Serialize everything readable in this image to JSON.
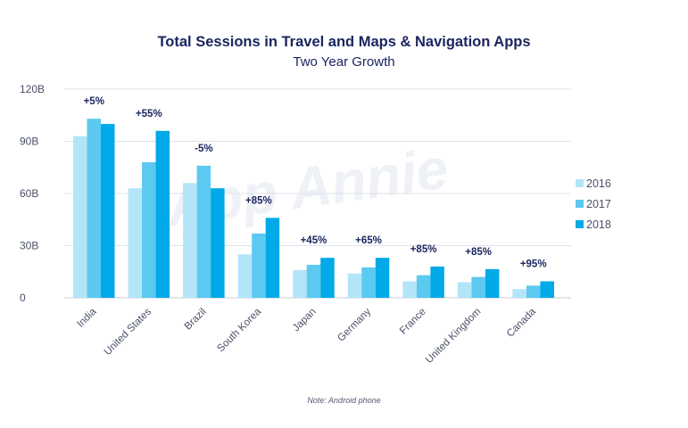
{
  "chart_data": {
    "type": "bar",
    "title": "Total Sessions in Travel and Maps & Navigation Apps",
    "subtitle": "Two Year Growth",
    "note": "Note: Android phone",
    "watermark": "App Annie",
    "xlabel": "",
    "ylabel": "",
    "ylim": [
      0,
      120
    ],
    "y_ticks": [
      "0",
      "30B",
      "60B",
      "90B",
      "120B"
    ],
    "y_tick_values": [
      0,
      30,
      60,
      90,
      120
    ],
    "grid": true,
    "legend_position": "right",
    "categories": [
      "India",
      "United States",
      "Brazil",
      "South Korea",
      "Japan",
      "Germany",
      "France",
      "United Kingdom",
      "Canada"
    ],
    "series": [
      {
        "name": "2016",
        "color": "#b3e5f8",
        "values": [
          93,
          63,
          66,
          25,
          16,
          14,
          9.5,
          9,
          5
        ]
      },
      {
        "name": "2017",
        "color": "#5cc9f0",
        "values": [
          103,
          78,
          76,
          37,
          19,
          17.5,
          13,
          12,
          7
        ]
      },
      {
        "name": "2018",
        "color": "#00a9e8",
        "values": [
          100,
          96,
          63,
          46,
          23,
          23,
          18,
          16.5,
          9.5
        ]
      }
    ],
    "growth_labels": [
      "+5%",
      "+55%",
      "-5%",
      "+85%",
      "+45%",
      "+65%",
      "+85%",
      "+85%",
      "+95%"
    ]
  }
}
